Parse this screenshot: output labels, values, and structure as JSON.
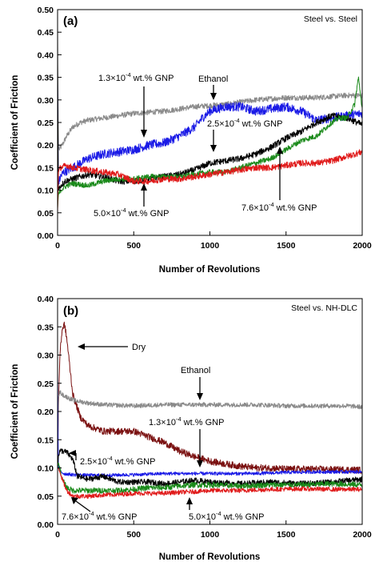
{
  "chart_data": [
    {
      "type": "line",
      "panel_label": "(a)",
      "condition": "Steel vs. Steel",
      "xlabel": "Number of Revolutions",
      "ylabel": "Coefficient of Friction",
      "xlim": [
        0,
        2000
      ],
      "ylim": [
        0,
        0.5
      ],
      "xticks": [
        "0",
        "500",
        "1000",
        "1500",
        "2000"
      ],
      "yticks": [
        "0.00",
        "0.05",
        "0.10",
        "0.15",
        "0.20",
        "0.25",
        "0.30",
        "0.35",
        "0.40",
        "0.45",
        "0.50"
      ],
      "grid": false,
      "series": [
        {
          "key": "ethanol",
          "color": "#8a8a8a",
          "noise": 0.006,
          "x": [
            0,
            5,
            10,
            30,
            60,
            100,
            150,
            200,
            300,
            500,
            700,
            900,
            1100,
            1300,
            1500,
            1700,
            1900,
            2000
          ],
          "y": [
            0.46,
            0.2,
            0.19,
            0.2,
            0.22,
            0.24,
            0.25,
            0.255,
            0.26,
            0.27,
            0.275,
            0.285,
            0.29,
            0.3,
            0.305,
            0.305,
            0.31,
            0.31
          ]
        },
        {
          "key": "gnp13",
          "color": "#1a1ae6",
          "noise": 0.01,
          "x": [
            0,
            5,
            10,
            20,
            40,
            100,
            150,
            200,
            300,
            400,
            500,
            600,
            700,
            800,
            900,
            950,
            1000,
            1050,
            1100,
            1200,
            1300,
            1400,
            1500,
            1600,
            1650,
            1700,
            1800,
            1900,
            2000
          ],
          "y": [
            0.34,
            0.11,
            0.12,
            0.13,
            0.14,
            0.15,
            0.16,
            0.17,
            0.18,
            0.185,
            0.19,
            0.2,
            0.205,
            0.22,
            0.24,
            0.26,
            0.275,
            0.28,
            0.285,
            0.285,
            0.275,
            0.28,
            0.285,
            0.275,
            0.265,
            0.255,
            0.26,
            0.265,
            0.27
          ]
        },
        {
          "key": "gnp25",
          "color": "#000000",
          "noise": 0.007,
          "x": [
            0,
            5,
            20,
            50,
            100,
            150,
            200,
            300,
            400,
            500,
            600,
            700,
            800,
            900,
            1000,
            1100,
            1200,
            1300,
            1400,
            1500,
            1600,
            1700,
            1800,
            1900,
            2000
          ],
          "y": [
            0.38,
            0.1,
            0.11,
            0.12,
            0.125,
            0.13,
            0.135,
            0.13,
            0.12,
            0.12,
            0.125,
            0.13,
            0.135,
            0.145,
            0.16,
            0.165,
            0.17,
            0.18,
            0.195,
            0.215,
            0.23,
            0.25,
            0.265,
            0.26,
            0.245
          ]
        },
        {
          "key": "gnp50",
          "color": "#1a8a1a",
          "noise": 0.006,
          "x": [
            0,
            5,
            20,
            60,
            100,
            200,
            300,
            400,
            500,
            600,
            700,
            800,
            900,
            1000,
            1100,
            1200,
            1300,
            1400,
            1500,
            1600,
            1700,
            1800,
            1850,
            1900,
            1950,
            1975,
            2000
          ],
          "y": [
            0.06,
            0.09,
            0.1,
            0.11,
            0.115,
            0.11,
            0.12,
            0.125,
            0.125,
            0.13,
            0.13,
            0.13,
            0.135,
            0.14,
            0.14,
            0.15,
            0.16,
            0.17,
            0.19,
            0.21,
            0.22,
            0.25,
            0.26,
            0.26,
            0.29,
            0.35,
            0.28
          ]
        },
        {
          "key": "gnp76",
          "color": "#e01a1a",
          "noise": 0.007,
          "x": [
            0,
            5,
            20,
            60,
            100,
            200,
            300,
            400,
            500,
            600,
            700,
            800,
            900,
            1000,
            1100,
            1200,
            1300,
            1400,
            1500,
            1600,
            1700,
            1800,
            1900,
            2000
          ],
          "y": [
            0.05,
            0.14,
            0.15,
            0.155,
            0.15,
            0.145,
            0.14,
            0.135,
            0.12,
            0.12,
            0.125,
            0.125,
            0.13,
            0.135,
            0.14,
            0.145,
            0.15,
            0.15,
            0.155,
            0.16,
            0.16,
            0.165,
            0.175,
            0.185
          ]
        }
      ],
      "annotations": [
        {
          "text": "Ethanol",
          "color": "#000"
        },
        {
          "text": "1.3×10",
          "sup": "-4",
          "rest": " wt.% GNP"
        },
        {
          "text": "2.5×10",
          "sup": "-4",
          "rest": " wt.% GNP"
        },
        {
          "text": "5.0×10",
          "sup": "-4",
          "rest": " wt.% GNP"
        },
        {
          "text": "7.6×10",
          "sup": "-4",
          "rest": " wt.% GNP"
        }
      ]
    },
    {
      "type": "line",
      "panel_label": "(b)",
      "condition": "Steel vs. NH-DLC",
      "xlabel": "Number of Revolutions",
      "ylabel": "Coefficient of Friction",
      "xlim": [
        0,
        2000
      ],
      "ylim": [
        0,
        0.4
      ],
      "xticks": [
        "0",
        "500",
        "1000",
        "1500",
        "2000"
      ],
      "yticks": [
        "0.00",
        "0.05",
        "0.10",
        "0.15",
        "0.20",
        "0.25",
        "0.30",
        "0.35",
        "0.40"
      ],
      "grid": false,
      "series": [
        {
          "key": "dry",
          "color": "#7a1010",
          "noise": 0.006,
          "x": [
            0,
            5,
            15,
            30,
            45,
            60,
            80,
            100,
            150,
            200,
            300,
            400,
            500,
            600,
            700,
            800,
            900,
            1000,
            1100,
            1200,
            1300,
            1400,
            1500,
            1600,
            1700,
            1800,
            1900,
            2000
          ],
          "y": [
            0.1,
            0.2,
            0.3,
            0.345,
            0.355,
            0.33,
            0.28,
            0.23,
            0.19,
            0.175,
            0.165,
            0.165,
            0.165,
            0.155,
            0.145,
            0.13,
            0.12,
            0.112,
            0.107,
            0.103,
            0.1,
            0.1,
            0.098,
            0.098,
            0.098,
            0.097,
            0.097,
            0.096
          ]
        },
        {
          "key": "ethanol",
          "color": "#8a8a8a",
          "noise": 0.004,
          "x": [
            0,
            5,
            15,
            30,
            100,
            200,
            300,
            500,
            700,
            900,
            1100,
            1300,
            1500,
            1700,
            1900,
            2000
          ],
          "y": [
            0.1,
            0.225,
            0.235,
            0.23,
            0.22,
            0.215,
            0.212,
            0.21,
            0.212,
            0.212,
            0.212,
            0.212,
            0.21,
            0.21,
            0.21,
            0.208
          ]
        },
        {
          "key": "gnp13",
          "color": "#1a1ae6",
          "noise": 0.003,
          "x": [
            0,
            5,
            15,
            40,
            100,
            200,
            300,
            500,
            700,
            900,
            1100,
            1300,
            1500,
            1700,
            1900,
            2000
          ],
          "y": [
            0.27,
            0.1,
            0.095,
            0.09,
            0.088,
            0.087,
            0.087,
            0.088,
            0.09,
            0.09,
            0.09,
            0.09,
            0.092,
            0.093,
            0.093,
            0.093
          ]
        },
        {
          "key": "gnp25",
          "color": "#000000",
          "noise": 0.005,
          "x": [
            0,
            5,
            15,
            30,
            60,
            100,
            130,
            200,
            300,
            400,
            500,
            600,
            700,
            800,
            900,
            1000,
            1200,
            1400,
            1600,
            1800,
            2000
          ],
          "y": [
            0.1,
            0.12,
            0.13,
            0.13,
            0.128,
            0.115,
            0.085,
            0.08,
            0.085,
            0.075,
            0.075,
            0.075,
            0.072,
            0.075,
            0.078,
            0.075,
            0.072,
            0.075,
            0.072,
            0.075,
            0.08
          ]
        },
        {
          "key": "gnp50",
          "color": "#1a8a1a",
          "noise": 0.005,
          "x": [
            0,
            5,
            15,
            30,
            60,
            100,
            200,
            300,
            400,
            500,
            600,
            700,
            800,
            900,
            1000,
            1200,
            1400,
            1600,
            1800,
            2000
          ],
          "y": [
            0.1,
            0.11,
            0.1,
            0.08,
            0.065,
            0.06,
            0.06,
            0.06,
            0.06,
            0.062,
            0.065,
            0.065,
            0.068,
            0.07,
            0.07,
            0.068,
            0.07,
            0.07,
            0.072,
            0.07
          ]
        },
        {
          "key": "gnp76",
          "color": "#e01a1a",
          "noise": 0.004,
          "x": [
            0,
            5,
            15,
            30,
            60,
            100,
            200,
            300,
            400,
            500,
            600,
            700,
            800,
            900,
            1000,
            1200,
            1400,
            1600,
            1800,
            2000
          ],
          "y": [
            0.1,
            0.1,
            0.095,
            0.08,
            0.06,
            0.05,
            0.05,
            0.052,
            0.053,
            0.055,
            0.055,
            0.055,
            0.057,
            0.058,
            0.06,
            0.06,
            0.062,
            0.063,
            0.062,
            0.062
          ]
        }
      ],
      "annotations": [
        {
          "text": "Dry"
        },
        {
          "text": "Ethanol"
        },
        {
          "text": "1.3×10",
          "sup": "-4",
          "rest": " wt.% GNP"
        },
        {
          "text": "2.5×10",
          "sup": "-4",
          "rest": " wt.% GNP"
        },
        {
          "text": "7.6×10",
          "sup": "-4",
          "rest": " wt.% GNP"
        },
        {
          "text": "5.0×10",
          "sup": "-4",
          "rest": " wt.% GNP"
        }
      ]
    }
  ]
}
